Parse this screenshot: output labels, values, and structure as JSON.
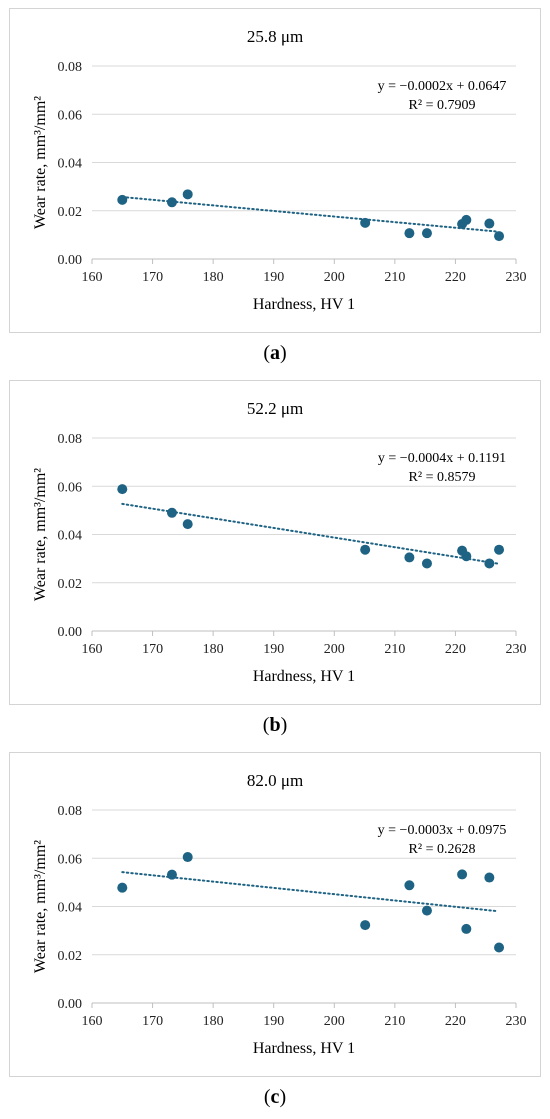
{
  "colors": {
    "marker": "#1f6384",
    "trend": "#1f6384",
    "grid": "#d9d9d9",
    "axis": "#bfbfbf",
    "frame": "#d4d4d4"
  },
  "panels": [
    {
      "caption_open": "(",
      "caption_letter": "a",
      "caption_close": ")",
      "chart_data": {
        "type": "scatter",
        "title": "25.8 μm",
        "xlabel": "Hardness, HV 1",
        "ylabel": "Wear rate, mm³/mm²",
        "xlim": [
          160,
          230
        ],
        "ylim": [
          0,
          0.08
        ],
        "xticks": [
          "160",
          "170",
          "180",
          "190",
          "200",
          "210",
          "220",
          "230"
        ],
        "yticks": [
          "0.00",
          "0.02",
          "0.04",
          "0.06",
          "0.08"
        ],
        "grid": "horizontal",
        "trendline": {
          "style": "dotted",
          "slope": -0.0002,
          "intercept": 0.0647,
          "x_range": [
            165,
            227
          ]
        },
        "equation": "y = −0.0002x + 0.0647",
        "r2": "R² = 0.7909",
        "points": [
          {
            "x": 165.0,
            "y": 0.0245
          },
          {
            "x": 173.2,
            "y": 0.0235
          },
          {
            "x": 175.8,
            "y": 0.0268
          },
          {
            "x": 205.1,
            "y": 0.015
          },
          {
            "x": 212.4,
            "y": 0.0107
          },
          {
            "x": 215.3,
            "y": 0.0107
          },
          {
            "x": 221.1,
            "y": 0.0145
          },
          {
            "x": 221.8,
            "y": 0.0162
          },
          {
            "x": 225.6,
            "y": 0.0147
          },
          {
            "x": 227.2,
            "y": 0.0095
          }
        ]
      }
    },
    {
      "caption_open": "(",
      "caption_letter": "b",
      "caption_close": ")",
      "chart_data": {
        "type": "scatter",
        "title": "52.2 μm",
        "xlabel": "Hardness, HV 1",
        "ylabel": "Wear rate, mm³/mm²",
        "xlim": [
          160,
          230
        ],
        "ylim": [
          0,
          0.08
        ],
        "xticks": [
          "160",
          "170",
          "180",
          "190",
          "200",
          "210",
          "220",
          "230"
        ],
        "yticks": [
          "0.00",
          "0.02",
          "0.04",
          "0.06",
          "0.08"
        ],
        "grid": "horizontal",
        "trendline": {
          "style": "dotted",
          "slope": -0.0004,
          "intercept": 0.1191,
          "x_range": [
            165,
            227
          ]
        },
        "equation": "y = −0.0004x + 0.1191",
        "r2": "R² = 0.8579",
        "points": [
          {
            "x": 165.0,
            "y": 0.0588
          },
          {
            "x": 173.2,
            "y": 0.049
          },
          {
            "x": 175.8,
            "y": 0.0443
          },
          {
            "x": 205.1,
            "y": 0.0337
          },
          {
            "x": 212.4,
            "y": 0.0305
          },
          {
            "x": 215.3,
            "y": 0.028
          },
          {
            "x": 221.1,
            "y": 0.0333
          },
          {
            "x": 221.8,
            "y": 0.031
          },
          {
            "x": 225.6,
            "y": 0.028
          },
          {
            "x": 227.2,
            "y": 0.0337
          }
        ]
      }
    },
    {
      "caption_open": "(",
      "caption_letter": "c",
      "caption_close": ")",
      "chart_data": {
        "type": "scatter",
        "title": "82.0 μm",
        "xlabel": "Hardness, HV 1",
        "ylabel": "Wear rate, mm³/mm²",
        "xlim": [
          160,
          230
        ],
        "ylim": [
          0,
          0.08
        ],
        "xticks": [
          "160",
          "170",
          "180",
          "190",
          "200",
          "210",
          "220",
          "230"
        ],
        "yticks": [
          "0.00",
          "0.02",
          "0.04",
          "0.06",
          "0.08"
        ],
        "grid": "horizontal",
        "trendline": {
          "style": "dotted",
          "slope": -0.0003,
          "intercept": 0.0975,
          "x_range": [
            165,
            227
          ]
        },
        "equation": "y = −0.0003x + 0.0975",
        "r2": "R² = 0.2628",
        "points": [
          {
            "x": 165.0,
            "y": 0.0478
          },
          {
            "x": 173.2,
            "y": 0.0532
          },
          {
            "x": 175.8,
            "y": 0.0605
          },
          {
            "x": 205.1,
            "y": 0.0323
          },
          {
            "x": 212.4,
            "y": 0.0488
          },
          {
            "x": 215.3,
            "y": 0.0383
          },
          {
            "x": 221.1,
            "y": 0.0533
          },
          {
            "x": 221.8,
            "y": 0.0307
          },
          {
            "x": 225.6,
            "y": 0.052
          },
          {
            "x": 227.2,
            "y": 0.023
          }
        ]
      }
    }
  ]
}
